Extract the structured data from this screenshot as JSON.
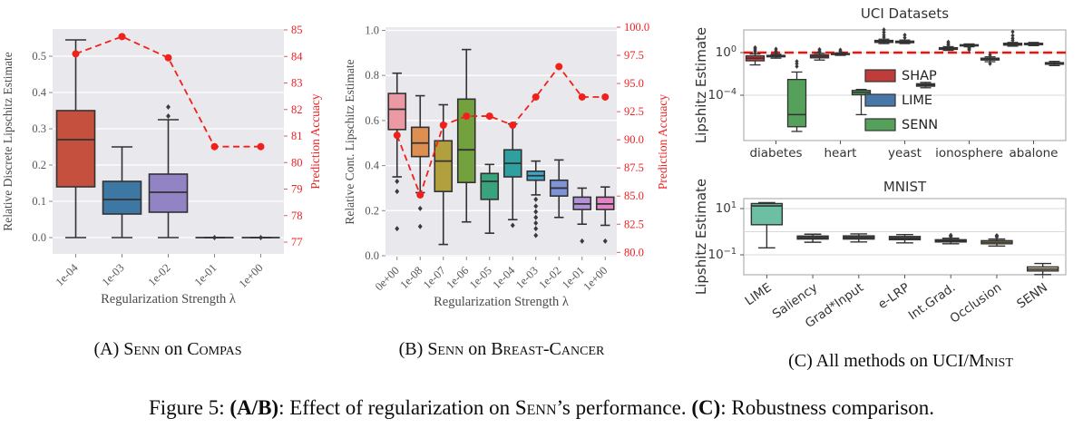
{
  "figure_caption": {
    "segments": [
      {
        "t": "Figure 5: "
      },
      {
        "t": "(A/B)",
        "b": true
      },
      {
        "t": ": Effect of regularization on "
      },
      {
        "t": "Senn",
        "sc": true
      },
      {
        "t": "’s performance. "
      },
      {
        "t": "(C)",
        "b": true
      },
      {
        "t": ": Robustness comparison."
      }
    ]
  },
  "panel_captions": [
    {
      "id": "a",
      "segments": [
        {
          "t": "(A) "
        },
        {
          "t": "Senn",
          "sc": true
        },
        {
          "t": " on "
        },
        {
          "t": "Compas",
          "sc": true
        }
      ]
    },
    {
      "id": "b",
      "segments": [
        {
          "t": "(B) "
        },
        {
          "t": "Senn",
          "sc": true
        },
        {
          "t": " on "
        },
        {
          "t": "Breast-Cancer",
          "sc": true
        }
      ]
    },
    {
      "id": "c",
      "segments": [
        {
          "t": "(C) All methods on UCI/"
        },
        {
          "t": "Mnist",
          "sc": true
        }
      ]
    }
  ],
  "chart_data": [
    {
      "id": "A",
      "type": "box+line",
      "xlabel": "Regularization Strength λ",
      "ylabel_left": "Relative Discrete Lipschitz Estimate",
      "ylabel_right": "Prediction Accuacy",
      "x_categories": [
        "1e-04",
        "1e-03",
        "1e-02",
        "1e-01",
        "1e+00"
      ],
      "y_left_ticks": {
        "values": [
          0.0,
          0.1,
          0.2,
          0.3,
          0.4,
          0.5
        ],
        "labels": [
          "0.0",
          "0.1",
          "0.2",
          "0.3",
          "0.4",
          "0.5"
        ]
      },
      "y_right_ticks": {
        "values": [
          77,
          78,
          79,
          80,
          81,
          82,
          83,
          84,
          85
        ],
        "labels": [
          "77",
          "78",
          "79",
          "80",
          "81",
          "82",
          "83",
          "84",
          "85"
        ]
      },
      "boxes": [
        {
          "color": "#c5503e",
          "whislo": 0.0,
          "q1": 0.14,
          "med": 0.27,
          "q3": 0.35,
          "whishi": 0.545,
          "fliers": []
        },
        {
          "color": "#3d78a4",
          "whislo": 0.0,
          "q1": 0.065,
          "med": 0.105,
          "q3": 0.155,
          "whishi": 0.25,
          "fliers": []
        },
        {
          "color": "#9283c5",
          "whislo": 0.0,
          "q1": 0.07,
          "med": 0.125,
          "q3": 0.175,
          "whishi": 0.325,
          "fliers": [
            0.335,
            0.36
          ]
        },
        {
          "color": "#3d78a4",
          "whislo": 0.0,
          "q1": 0.0,
          "med": 0.0,
          "q3": 0.0,
          "whishi": 0.0,
          "fliers": [
            0.0
          ]
        },
        {
          "color": "#3d78a4",
          "whislo": 0.0,
          "q1": 0.0,
          "med": 0.0,
          "q3": 0.0,
          "whishi": 0.0,
          "fliers": [
            0.0
          ]
        }
      ],
      "accuracy_line": {
        "color": "#f1201b",
        "values": [
          84.1,
          84.75,
          83.95,
          80.6,
          80.6
        ]
      }
    },
    {
      "id": "B",
      "type": "box+line",
      "xlabel": "Regularization Strength λ",
      "ylabel_left": "Relative Cont. Lipschitz Estimate",
      "ylabel_right": "Prediction Accuacy",
      "x_categories": [
        "0e+00",
        "1e-08",
        "1e-07",
        "1e-06",
        "1e-05",
        "1e-04",
        "1e-03",
        "1e-02",
        "1e-01",
        "1e+00"
      ],
      "y_left_ticks": {
        "values": [
          0.0,
          0.2,
          0.4,
          0.6,
          0.8,
          1.0
        ],
        "labels": [
          "0.0",
          "0.2",
          "0.4",
          "0.6",
          "0.8",
          "1.0"
        ]
      },
      "y_right_ticks": {
        "values": [
          80.0,
          82.5,
          85.0,
          87.5,
          90.0,
          92.5,
          95.0,
          97.5,
          100.0
        ],
        "labels": [
          "80.0",
          "82.5",
          "85.0",
          "87.5",
          "90.0",
          "92.5",
          "95.0",
          "97.5",
          "100.0"
        ]
      },
      "boxes": [
        {
          "color": "#eb9aa3",
          "whislo": 0.35,
          "q1": 0.56,
          "med": 0.65,
          "q3": 0.72,
          "whishi": 0.81,
          "fliers": [
            0.33,
            0.285,
            0.12
          ]
        },
        {
          "color": "#dd8e51",
          "whislo": 0.28,
          "q1": 0.44,
          "med": 0.5,
          "q3": 0.57,
          "whishi": 0.71,
          "fliers": [
            0.21,
            0.13
          ]
        },
        {
          "color": "#b2a03f",
          "whislo": 0.05,
          "q1": 0.285,
          "med": 0.42,
          "q3": 0.51,
          "whishi": 0.67,
          "fliers": []
        },
        {
          "color": "#73a13e",
          "whislo": 0.15,
          "q1": 0.325,
          "med": 0.47,
          "q3": 0.695,
          "whishi": 0.915,
          "fliers": []
        },
        {
          "color": "#38a37c",
          "whislo": 0.1,
          "q1": 0.25,
          "med": 0.33,
          "q3": 0.365,
          "whishi": 0.405,
          "fliers": []
        },
        {
          "color": "#2f9f9f",
          "whislo": 0.16,
          "q1": 0.35,
          "med": 0.41,
          "q3": 0.47,
          "whishi": 0.585,
          "fliers": [
            0.135
          ]
        },
        {
          "color": "#3ea5c5",
          "whislo": 0.27,
          "q1": 0.335,
          "med": 0.355,
          "q3": 0.375,
          "whishi": 0.42,
          "fliers": [
            0.25,
            0.22,
            0.195,
            0.17,
            0.145,
            0.12,
            0.09
          ]
        },
        {
          "color": "#8092d8",
          "whislo": 0.17,
          "q1": 0.265,
          "med": 0.3,
          "q3": 0.335,
          "whishi": 0.425,
          "fliers": []
        },
        {
          "color": "#b391d6",
          "whislo": 0.14,
          "q1": 0.205,
          "med": 0.23,
          "q3": 0.26,
          "whishi": 0.3,
          "fliers": [
            0.065
          ]
        },
        {
          "color": "#e284c4",
          "whislo": 0.135,
          "q1": 0.205,
          "med": 0.23,
          "q3": 0.26,
          "whishi": 0.305,
          "fliers": [
            0.065
          ]
        }
      ],
      "accuracy_line": {
        "color": "#f1201b",
        "values": [
          90.4,
          85.1,
          91.3,
          92.1,
          92.1,
          91.3,
          93.8,
          96.5,
          93.8,
          93.8
        ]
      }
    },
    {
      "id": "C-UCI",
      "type": "grouped-box-log",
      "title": "UCI Datasets",
      "ylabel": "Lipshitz Estimate",
      "x_categories": [
        "diabetes",
        "heart",
        "yeast",
        "ionosphere",
        "abalone"
      ],
      "y_ticks": [
        {
          "v": 1,
          "exp": "0"
        },
        {
          "v": 0.0001,
          "exp": "−4"
        }
      ],
      "ref_line": {
        "v": 1,
        "color": "#ee1211"
      },
      "series": [
        {
          "name": "SHAP",
          "color": "#c03c3a",
          "boxes": [
            {
              "whislo": 0.07,
              "q1": 0.17,
              "med": 0.3,
              "q3": 0.5,
              "whishi": 0.75,
              "fliers": [
                1.1,
                1.5,
                2.2,
                3.0
              ]
            },
            {
              "whislo": 0.2,
              "q1": 0.32,
              "med": 0.45,
              "q3": 0.62,
              "whishi": 0.85,
              "fliers": [
                1.1,
                1.4,
                2.0
              ]
            },
            {
              "whislo": 7,
              "q1": 9,
              "med": 11,
              "q3": 14,
              "whishi": 18,
              "fliers": [
                28,
                45,
                80,
                140
              ]
            },
            {
              "whislo": 1.6,
              "q1": 2.0,
              "med": 2.4,
              "q3": 2.9,
              "whishi": 3.6,
              "fliers": [
                5,
                7,
                10
              ]
            },
            {
              "whislo": 4,
              "q1": 5,
              "med": 6,
              "q3": 7.5,
              "whishi": 9,
              "fliers": [
                14,
                22,
                40,
                90
              ]
            }
          ]
        },
        {
          "name": "LIME",
          "color": "#4878a8",
          "boxes": [
            {
              "whislo": 0.3,
              "q1": 0.4,
              "med": 0.47,
              "q3": 0.55,
              "whishi": 0.7,
              "fliers": [
                1.0,
                1.4,
                2.2
              ]
            },
            {
              "whislo": 0.55,
              "q1": 0.65,
              "med": 0.72,
              "q3": 0.8,
              "whishi": 0.95,
              "fliers": [
                1.3,
                1.8
              ]
            },
            {
              "whislo": 7,
              "q1": 8.5,
              "med": 10,
              "q3": 12,
              "whishi": 15,
              "fliers": [
                25,
                45
              ]
            },
            {
              "whislo": 3.5,
              "q1": 4.2,
              "med": 4.8,
              "q3": 5.5,
              "whishi": 6.5,
              "fliers": [
                2.8,
                2.2,
                1.8
              ]
            },
            {
              "whislo": 4.5,
              "q1": 5.5,
              "med": 6.5,
              "q3": 7.5,
              "whishi": 9,
              "fliers": []
            }
          ]
        },
        {
          "name": "SENN",
          "color": "#55a05a",
          "boxes": [
            {
              "whislo": 4e-08,
              "q1": 1.1e-07,
              "med": 1.5e-06,
              "q3": 0.003,
              "whishi": 0.015,
              "fliers": [
                0.05,
                0.09,
                0.15
              ]
            },
            {
              "whislo": 1.5e-06,
              "q1": 0.00011,
              "med": 0.00018,
              "q3": 0.00028,
              "whishi": 0.00035,
              "fliers": []
            },
            {
              "whislo": 0.0005,
              "q1": 0.0007,
              "med": 0.0009,
              "q3": 0.0012,
              "whishi": 0.0016,
              "fliers": []
            },
            {
              "whislo": 0.14,
              "q1": 0.2,
              "med": 0.25,
              "q3": 0.3,
              "whishi": 0.4,
              "fliers": [
                0.6,
                0.09
              ]
            },
            {
              "whislo": 0.06,
              "q1": 0.08,
              "med": 0.095,
              "q3": 0.115,
              "whishi": 0.15,
              "fliers": []
            }
          ]
        }
      ]
    },
    {
      "id": "C-MNIST",
      "type": "box-log",
      "title": "MNIST",
      "ylabel": "Lipshitz Estimate",
      "x_categories": [
        "LIME",
        "Saliency",
        "Grad*Input",
        "e-LRP",
        "Int.Grad.",
        "Occlusion",
        "SENN"
      ],
      "y_ticks": [
        {
          "v": 10,
          "exp": "1"
        },
        {
          "v": 0.1,
          "exp": "−1"
        }
      ],
      "grid_values": [
        10,
        1,
        0.1
      ],
      "boxes": [
        {
          "color": "#6dbfa4",
          "whislo": 0.2,
          "q1": 2.0,
          "med": 13,
          "q3": 16.5,
          "whishi": 18,
          "fliers": []
        },
        {
          "color": "#575757",
          "whislo": 0.35,
          "q1": 0.48,
          "med": 0.55,
          "q3": 0.65,
          "whishi": 0.78,
          "fliers": []
        },
        {
          "color": "#575757",
          "whislo": 0.36,
          "q1": 0.48,
          "med": 0.56,
          "q3": 0.66,
          "whishi": 0.8,
          "fliers": []
        },
        {
          "color": "#575757",
          "whislo": 0.33,
          "q1": 0.45,
          "med": 0.52,
          "q3": 0.62,
          "whishi": 0.75,
          "fliers": []
        },
        {
          "color": "#575757",
          "whislo": 0.3,
          "q1": 0.36,
          "med": 0.4,
          "q3": 0.45,
          "whishi": 0.52,
          "fliers": [
            0.62,
            0.7
          ]
        },
        {
          "color": "#d9c45c",
          "whislo": 0.24,
          "q1": 0.3,
          "med": 0.35,
          "q3": 0.41,
          "whishi": 0.48,
          "fliers": [
            0.6,
            0.68
          ]
        },
        {
          "color": "#e6cda3",
          "whislo": 0.014,
          "q1": 0.02,
          "med": 0.024,
          "q3": 0.03,
          "whishi": 0.042,
          "fliers": []
        }
      ]
    }
  ]
}
